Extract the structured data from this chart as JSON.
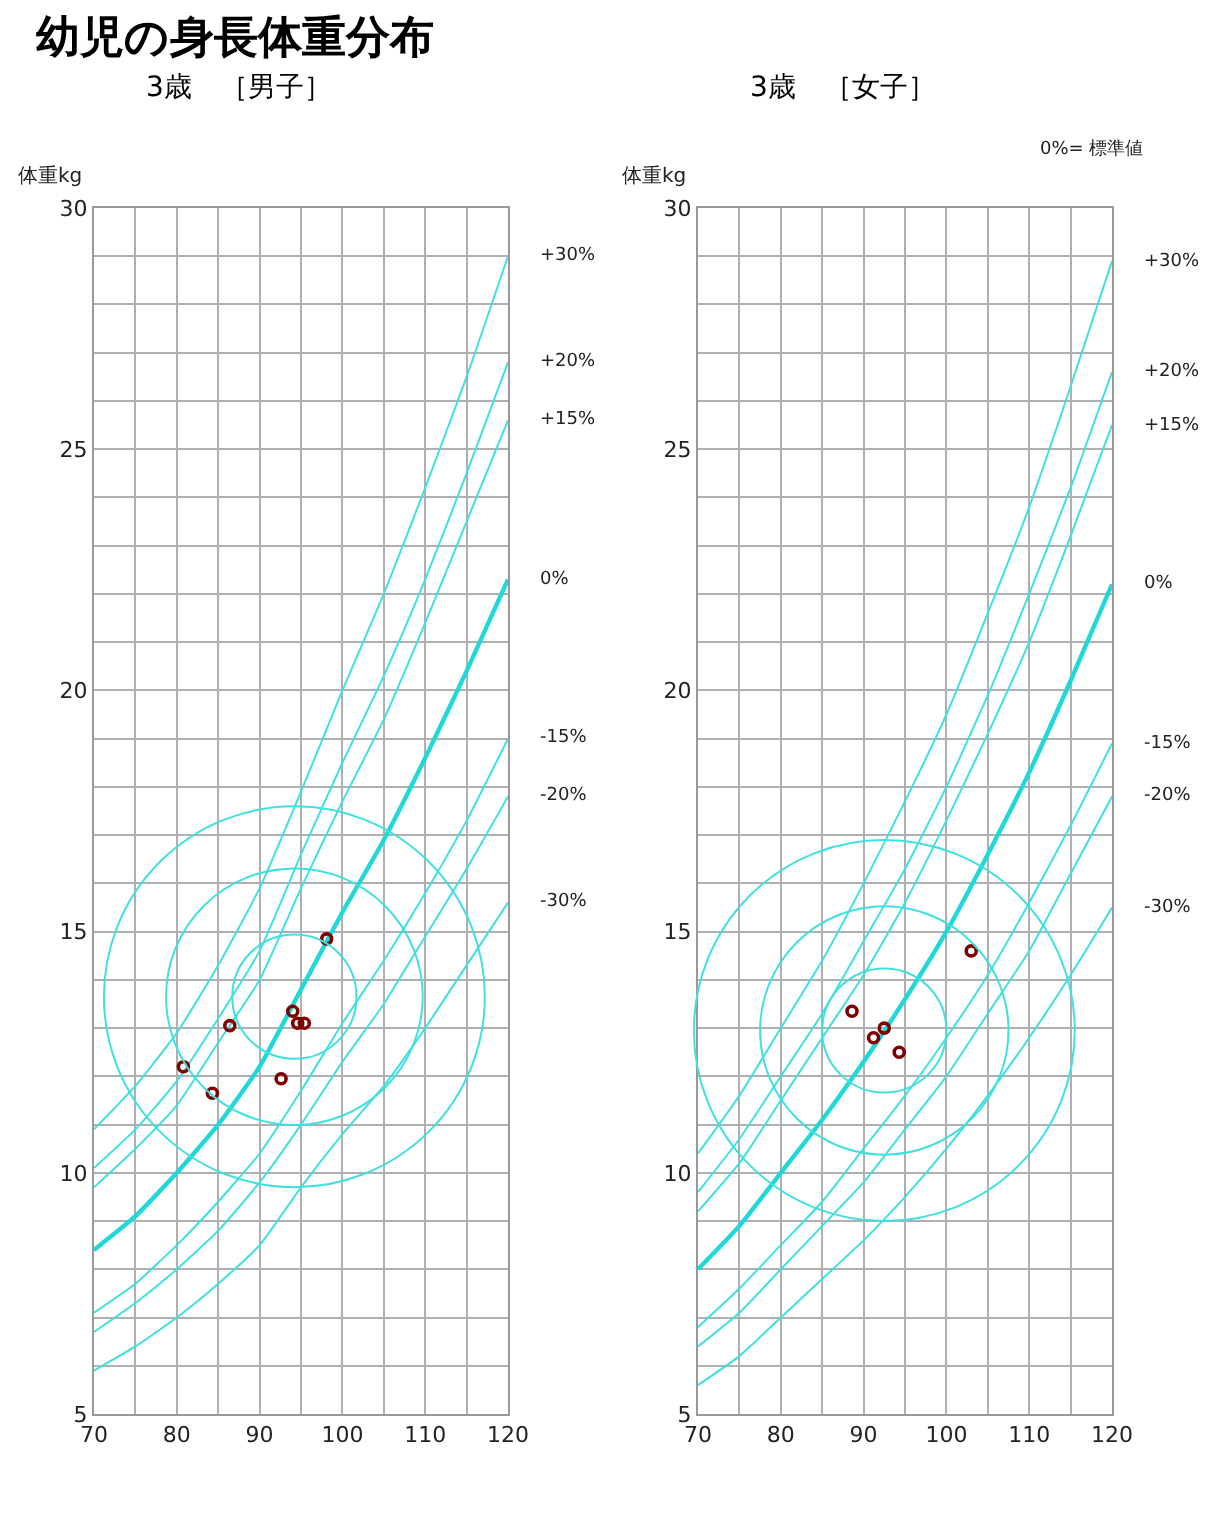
{
  "chart_data": [
    {
      "type": "line",
      "title": "幼児の身長体重分布",
      "subtitle": "3歳　［男子］",
      "ylabel": "体重kg",
      "xlim": [
        70,
        120
      ],
      "ylim": [
        5,
        30
      ],
      "xticks": [
        70,
        {
          "value": 75,
          "label": null
        },
        80,
        {
          "value": 85,
          "label": null
        },
        90,
        {
          "value": 95,
          "label": null
        },
        100,
        {
          "value": 105,
          "label": null
        },
        110,
        {
          "value": 115,
          "label": null
        },
        120
      ],
      "yticks": [
        5,
        {
          "value": 6,
          "label": null
        },
        {
          "value": 7,
          "label": null
        },
        {
          "value": 8,
          "label": null
        },
        {
          "value": 9,
          "label": null
        },
        10,
        {
          "value": 11,
          "label": null
        },
        {
          "value": 12,
          "label": null
        },
        {
          "value": 13,
          "label": null
        },
        {
          "value": 14,
          "label": null
        },
        15,
        {
          "value": 16,
          "label": null
        },
        {
          "value": 17,
          "label": null
        },
        {
          "value": 18,
          "label": null
        },
        {
          "value": 19,
          "label": null
        },
        20,
        {
          "value": 21,
          "label": null
        },
        {
          "value": 22,
          "label": null
        },
        {
          "value": 23,
          "label": null
        },
        {
          "value": 24,
          "label": null
        },
        25,
        {
          "value": 26,
          "label": null
        },
        {
          "value": 27,
          "label": null
        },
        {
          "value": 28,
          "label": null
        },
        {
          "value": 29,
          "label": null
        },
        30
      ],
      "grid": true,
      "legend": false,
      "x": [
        70,
        75,
        80,
        85,
        90,
        95,
        100,
        105,
        110,
        115,
        120
      ],
      "series": [
        {
          "name": "+30%",
          "color": "#40e0e0",
          "values": [
            10.9,
            11.8,
            12.9,
            14.3,
            15.9,
            17.9,
            20.0,
            22.0,
            24.2,
            26.5,
            29.0
          ]
        },
        {
          "name": "+20%",
          "color": "#40e0e0",
          "values": [
            10.1,
            10.9,
            11.9,
            13.2,
            14.6,
            16.6,
            18.5,
            20.3,
            22.3,
            24.5,
            26.8
          ]
        },
        {
          "name": "+15%",
          "color": "#40e0e0",
          "values": [
            9.7,
            10.5,
            11.4,
            12.7,
            14.0,
            15.9,
            17.7,
            19.4,
            21.4,
            23.5,
            25.6
          ]
        },
        {
          "name": "0%",
          "color": "#20d8d8",
          "values": [
            8.4,
            9.1,
            10.0,
            11.0,
            12.2,
            13.8,
            15.4,
            16.9,
            18.6,
            20.4,
            22.3
          ]
        },
        {
          "name": "-15%",
          "color": "#40e0e0",
          "values": [
            7.1,
            7.7,
            8.5,
            9.4,
            10.4,
            11.7,
            13.1,
            14.4,
            15.8,
            17.3,
            19.0
          ]
        },
        {
          "name": "-20%",
          "color": "#40e0e0",
          "values": [
            6.7,
            7.3,
            8.0,
            8.8,
            9.8,
            11.0,
            12.3,
            13.5,
            14.9,
            16.3,
            17.8
          ]
        },
        {
          "name": "-30%",
          "color": "#40e0e0",
          "values": [
            5.9,
            6.4,
            7.0,
            7.7,
            8.5,
            9.7,
            10.8,
            11.8,
            13.0,
            14.3,
            15.6
          ]
        },
        {
          "type": "scatter",
          "marker": "circle",
          "color": "#800000",
          "x": [
            98.1,
            94.0,
            94.6,
            95.4,
            86.4,
            80.8,
            84.3,
            92.6
          ],
          "values": [
            14.85,
            13.35,
            13.1,
            13.1,
            13.05,
            12.2,
            11.65,
            11.95
          ]
        }
      ]
    },
    {
      "type": "line",
      "title": "3歳　［女子］",
      "ylabel": "体重kg",
      "annotations": [
        "0%= 標準値"
      ],
      "xlim": [
        70,
        120
      ],
      "ylim": [
        5,
        30
      ],
      "xticks": [
        70,
        {
          "value": 75,
          "label": null
        },
        80,
        {
          "value": 85,
          "label": null
        },
        90,
        {
          "value": 95,
          "label": null
        },
        100,
        {
          "value": 105,
          "label": null
        },
        110,
        {
          "value": 115,
          "label": null
        },
        120
      ],
      "yticks": [
        5,
        {
          "value": 6,
          "label": null
        },
        {
          "value": 7,
          "label": null
        },
        {
          "value": 8,
          "label": null
        },
        {
          "value": 9,
          "label": null
        },
        10,
        {
          "value": 11,
          "label": null
        },
        {
          "value": 12,
          "label": null
        },
        {
          "value": 13,
          "label": null
        },
        {
          "value": 14,
          "label": null
        },
        15,
        {
          "value": 16,
          "label": null
        },
        {
          "value": 17,
          "label": null
        },
        {
          "value": 18,
          "label": null
        },
        {
          "value": 19,
          "label": null
        },
        20,
        {
          "value": 21,
          "label": null
        },
        {
          "value": 22,
          "label": null
        },
        {
          "value": 23,
          "label": null
        },
        {
          "value": 24,
          "label": null
        },
        25,
        {
          "value": 26,
          "label": null
        },
        {
          "value": 27,
          "label": null
        },
        {
          "value": 28,
          "label": null
        },
        {
          "value": 29,
          "label": null
        },
        30
      ],
      "grid": true,
      "legend": false,
      "x": [
        70,
        75,
        80,
        85,
        90,
        95,
        100,
        105,
        110,
        115,
        120
      ],
      "series": [
        {
          "name": "+30%",
          "color": "#40e0e0",
          "values": [
            10.4,
            11.6,
            13.0,
            14.4,
            16.0,
            17.7,
            19.5,
            21.6,
            23.8,
            26.3,
            28.9
          ]
        },
        {
          "name": "+20%",
          "color": "#40e0e0",
          "values": [
            9.6,
            10.7,
            12.0,
            13.3,
            14.8,
            16.3,
            18.0,
            19.9,
            22.0,
            24.2,
            26.6
          ]
        },
        {
          "name": "+15%",
          "color": "#40e0e0",
          "values": [
            9.2,
            10.2,
            11.5,
            12.8,
            14.1,
            15.6,
            17.3,
            19.1,
            21.0,
            23.2,
            25.5
          ]
        },
        {
          "name": "0%",
          "color": "#20d8d8",
          "values": [
            8.0,
            8.9,
            10.0,
            11.1,
            12.3,
            13.6,
            15.0,
            16.6,
            18.3,
            20.2,
            22.2
          ]
        },
        {
          "name": "-15%",
          "color": "#40e0e0",
          "values": [
            6.8,
            7.6,
            8.5,
            9.4,
            10.5,
            11.6,
            12.8,
            14.1,
            15.6,
            17.2,
            18.9
          ]
        },
        {
          "name": "-20%",
          "color": "#40e0e0",
          "values": [
            6.4,
            7.1,
            8.0,
            8.9,
            9.8,
            10.9,
            12.0,
            13.3,
            14.6,
            16.2,
            17.8
          ]
        },
        {
          "name": "-30%",
          "color": "#40e0e0",
          "values": [
            5.6,
            6.2,
            7.0,
            7.8,
            8.6,
            9.5,
            10.5,
            11.6,
            12.8,
            14.1,
            15.5
          ]
        },
        {
          "type": "scatter",
          "marker": "circle",
          "color": "#800000",
          "x": [
            103.0,
            88.6,
            92.5,
            91.2,
            94.3
          ],
          "values": [
            14.6,
            13.35,
            13.0,
            12.8,
            12.5
          ]
        }
      ]
    }
  ]
}
